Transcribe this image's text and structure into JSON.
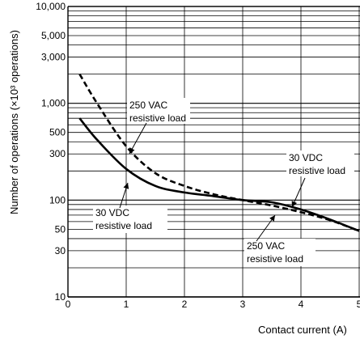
{
  "chart_data": {
    "type": "line",
    "title": "",
    "xlabel": "Contact current (A)",
    "ylabel": "Number of operations (×10³ operations)",
    "xlim": [
      0,
      5
    ],
    "ylim": [
      10,
      10000
    ],
    "y_scale": "log",
    "grid": true,
    "x_ticks": [
      "0",
      "1",
      "2",
      "3",
      "4",
      "5"
    ],
    "y_ticks": [
      "10",
      "30",
      "50",
      "100",
      "300",
      "500",
      "1,000",
      "3,000",
      "5,000",
      "10,000"
    ],
    "series": [
      {
        "name": "250 VAC resistive load",
        "style": "dashed",
        "x": [
          0.2,
          0.5,
          1.0,
          1.5,
          2.0,
          2.5,
          3.0,
          3.5,
          4.0,
          4.5,
          5.0
        ],
        "y": [
          2000,
          1000,
          360,
          190,
          140,
          115,
          100,
          88,
          75,
          62,
          48
        ]
      },
      {
        "name": "30 VDC resistive load",
        "style": "solid",
        "x": [
          0.2,
          0.5,
          1.0,
          1.5,
          2.0,
          2.5,
          3.0,
          3.5,
          4.0,
          4.5,
          5.0
        ],
        "y": [
          700,
          420,
          210,
          140,
          120,
          110,
          100,
          95,
          80,
          63,
          48
        ]
      }
    ],
    "annotations": [
      {
        "lines": [
          "250 VAC",
          "resistive load"
        ]
      },
      {
        "lines": [
          "30 VDC",
          "resistive load"
        ]
      },
      {
        "lines": [
          "30 VDC",
          "resistive load"
        ]
      },
      {
        "lines": [
          "250 VAC",
          "resistive load"
        ]
      }
    ]
  }
}
